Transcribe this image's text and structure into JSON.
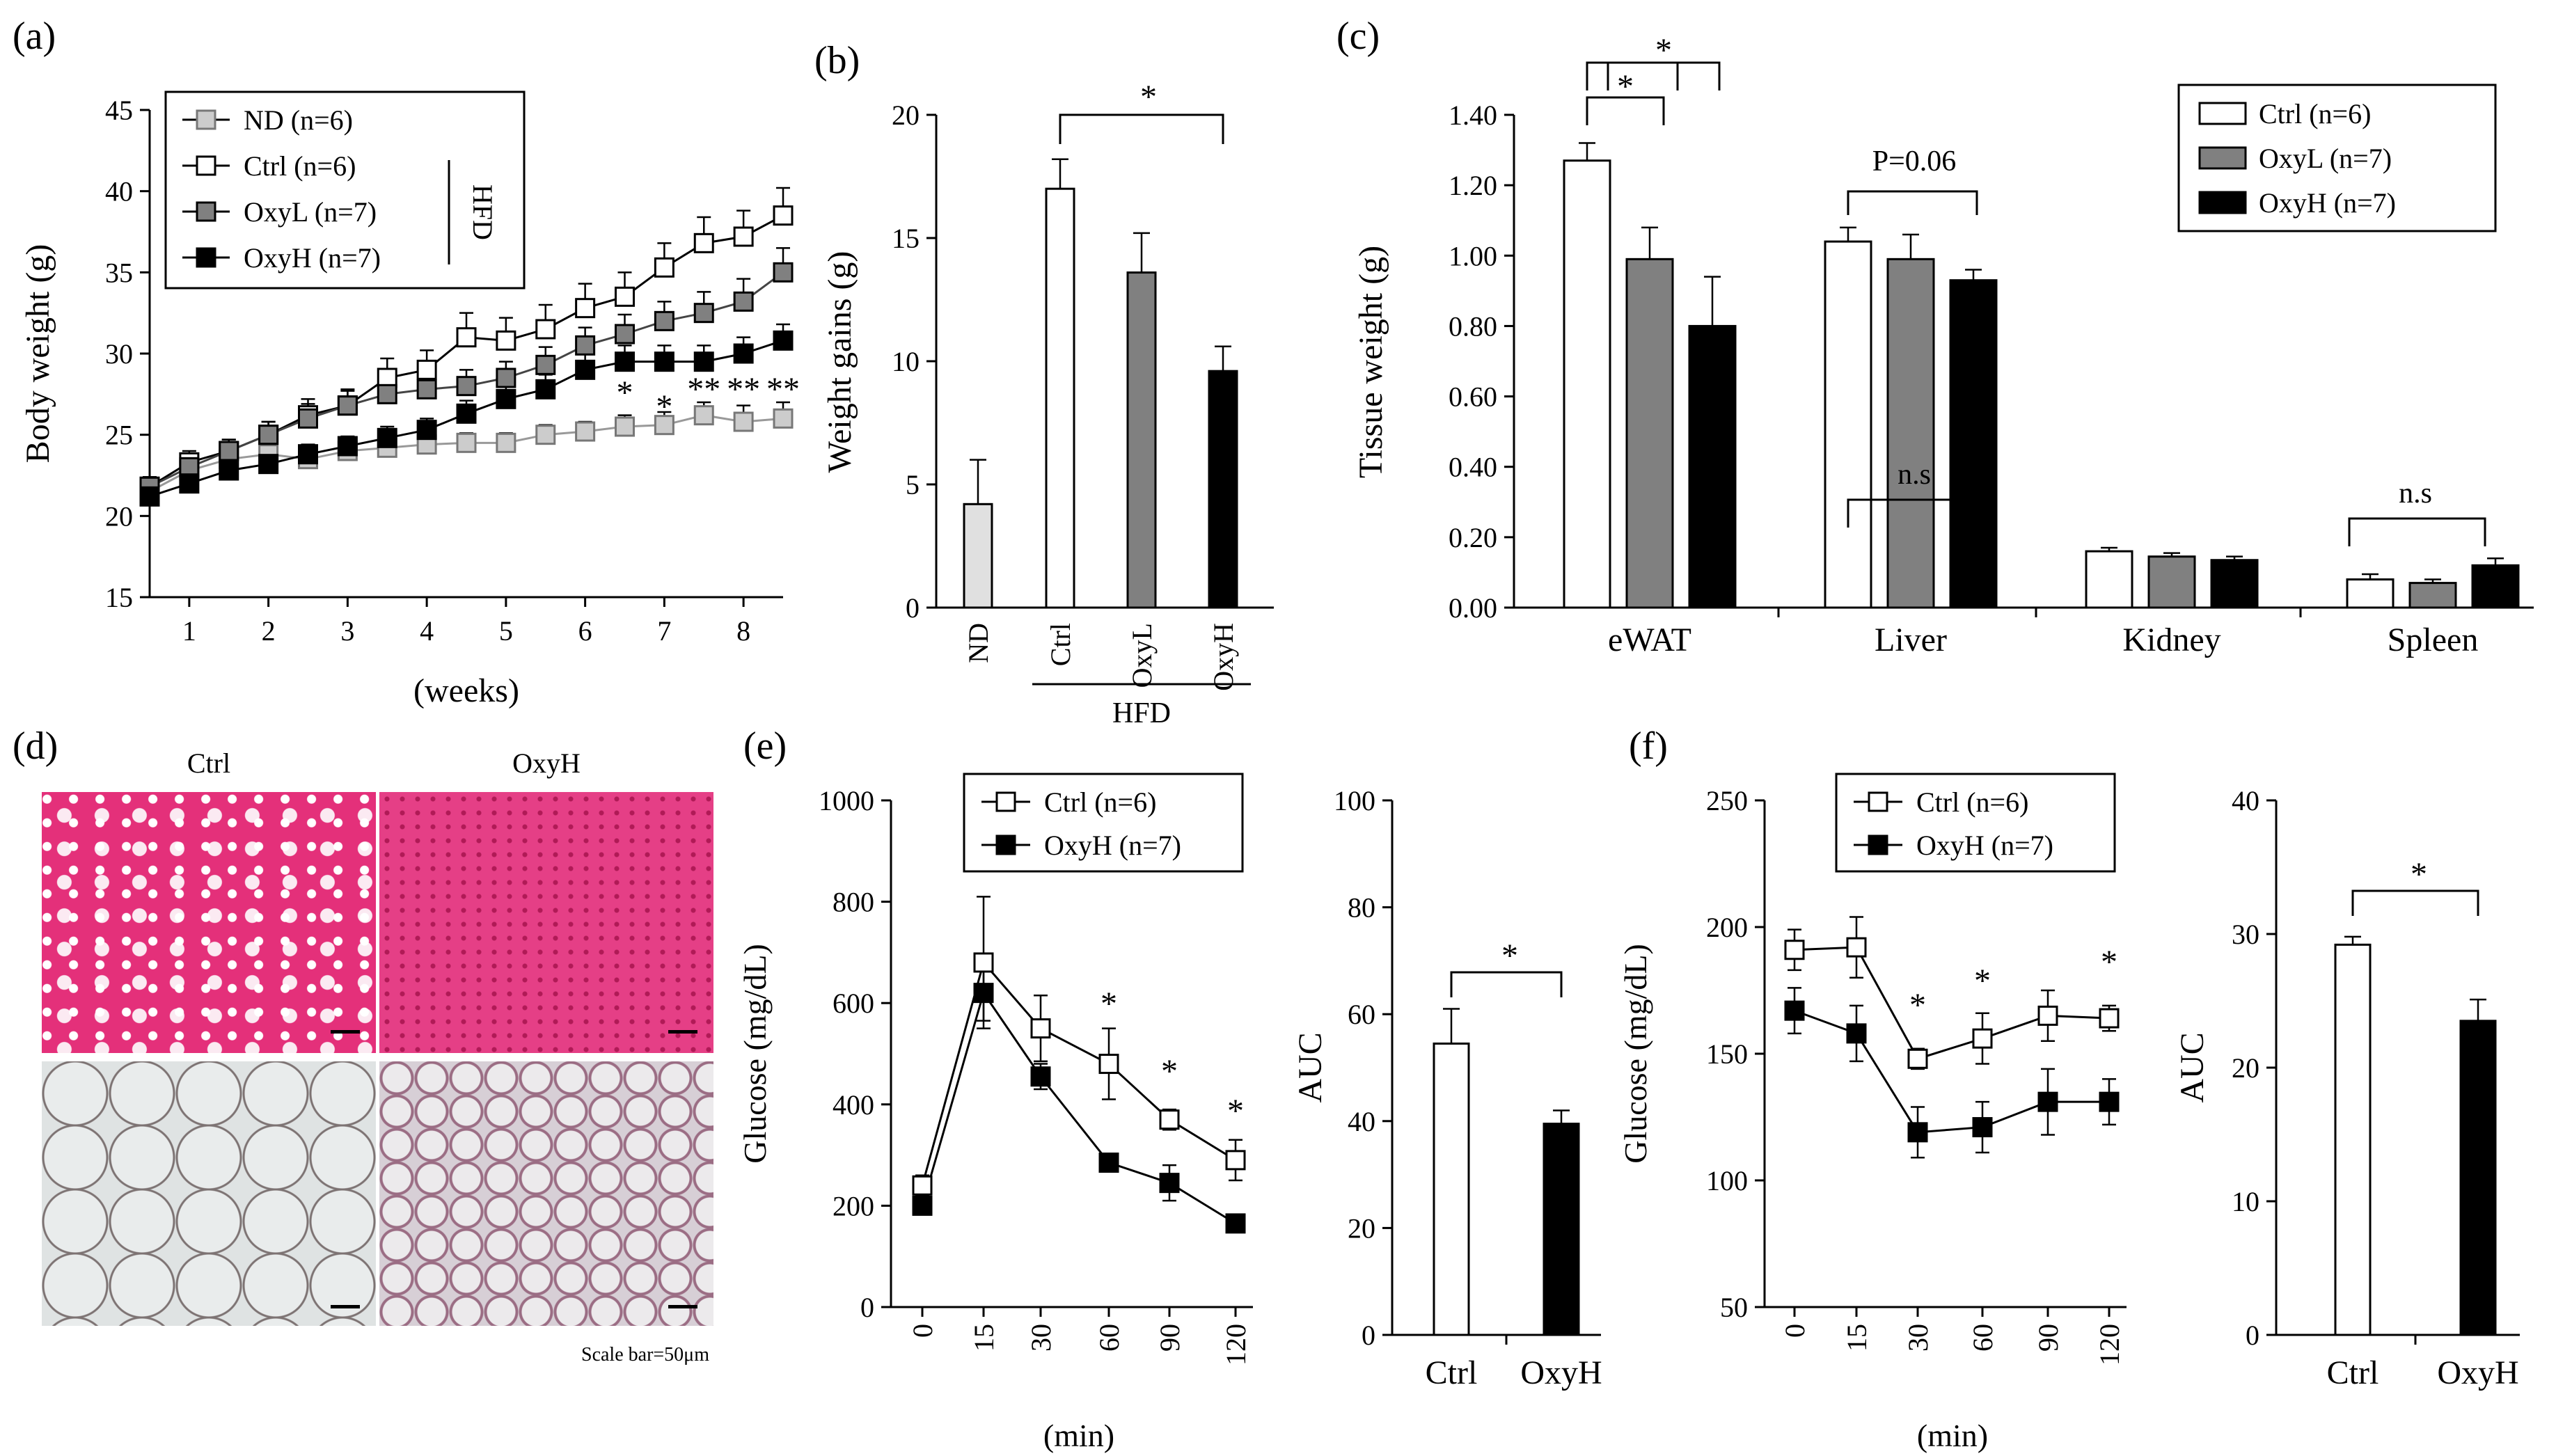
{
  "panel_a": {
    "label": "(a)",
    "chart_data": {
      "type": "line",
      "title": "",
      "xlabel": "(weeks)",
      "ylabel": "Body weight (g)",
      "ylim": [
        15,
        45
      ],
      "yticks": [
        "15",
        "20",
        "25",
        "30",
        "35",
        "40",
        "45"
      ],
      "xlim": [
        0.5,
        8.5
      ],
      "xticks": [
        "1",
        "2",
        "3",
        "4",
        "5",
        "6",
        "7",
        "8"
      ],
      "x": [
        0.5,
        1,
        1.5,
        2,
        2.5,
        3,
        3.5,
        4,
        4.5,
        5,
        5.5,
        6,
        6.5,
        7,
        7.5,
        8,
        8.5
      ],
      "series": [
        {
          "name": "ND (n=6)",
          "color": "#aaaaaa",
          "marker": "square-light",
          "values": [
            21.5,
            22.8,
            23.5,
            23.8,
            23.5,
            24.0,
            24.2,
            24.4,
            24.5,
            24.5,
            25.0,
            25.2,
            25.5,
            25.6,
            26.2,
            25.8,
            26.0
          ],
          "errors": [
            0.5,
            0.6,
            0.6,
            0.6,
            0.6,
            0.6,
            0.6,
            0.6,
            0.6,
            0.6,
            0.6,
            0.6,
            0.7,
            0.8,
            0.8,
            1.0,
            1.0
          ]
        },
        {
          "name": "Ctrl (n=6)",
          "color": "#ffffff",
          "marker": "square-open",
          "values": [
            21.8,
            23.3,
            24.0,
            25.0,
            26.2,
            26.8,
            28.5,
            29.0,
            31.0,
            30.8,
            31.5,
            32.8,
            33.5,
            35.3,
            36.8,
            37.2,
            38.5
          ],
          "errors": [
            0.6,
            0.7,
            0.7,
            0.8,
            1.0,
            1.0,
            1.2,
            1.2,
            1.5,
            1.4,
            1.5,
            1.5,
            1.5,
            1.5,
            1.6,
            1.6,
            1.7
          ]
        },
        {
          "name": "OxyL (n=7)",
          "color": "#777777",
          "marker": "square-gray",
          "values": [
            21.8,
            23.0,
            24.0,
            25.0,
            26.0,
            26.8,
            27.5,
            27.8,
            28.0,
            28.5,
            29.3,
            30.5,
            31.2,
            32.0,
            32.5,
            33.2,
            35.0
          ],
          "errors": [
            0.6,
            0.7,
            0.7,
            0.8,
            0.9,
            0.9,
            1.0,
            1.0,
            1.0,
            1.0,
            1.1,
            1.1,
            1.2,
            1.2,
            1.3,
            1.4,
            1.5
          ]
        },
        {
          "name": "OxyH (n=7)",
          "color": "#000000",
          "marker": "square-filled",
          "values": [
            21.2,
            22.0,
            22.8,
            23.2,
            23.8,
            24.3,
            24.8,
            25.3,
            26.3,
            27.2,
            27.8,
            29.0,
            29.5,
            29.5,
            29.5,
            30.0,
            30.8
          ],
          "errors": [
            0.5,
            0.5,
            0.5,
            0.6,
            0.6,
            0.6,
            0.7,
            0.7,
            0.8,
            0.9,
            0.9,
            1.0,
            1.0,
            1.0,
            1.0,
            1.0,
            1.0
          ]
        }
      ],
      "legend_group_label": "HFD",
      "annotations": [
        "*",
        "*",
        "**",
        "**",
        "**"
      ]
    }
  },
  "panel_b": {
    "label": "(b)",
    "chart_data": {
      "type": "bar",
      "title": "",
      "xlabel": "HFD",
      "ylabel": "Weight gains (g)",
      "ylim": [
        0,
        20
      ],
      "yticks": [
        "0",
        "5",
        "10",
        "15",
        "20"
      ],
      "categories": [
        "ND",
        "Ctrl",
        "OxyL",
        "OxyH"
      ],
      "values": [
        4.2,
        17.0,
        13.6,
        9.6
      ],
      "errors": [
        1.8,
        1.2,
        1.6,
        1.0
      ],
      "colors": [
        "#e0e0e0",
        "#ffffff",
        "#808080",
        "#000000"
      ],
      "significance": "*"
    }
  },
  "panel_c": {
    "label": "(c)",
    "chart_data": {
      "type": "bar",
      "title": "",
      "xlabel": "",
      "ylabel": "Tissue weight (g)",
      "ylim": [
        0,
        1.4
      ],
      "yticks": [
        "0.00",
        "0.20",
        "0.40",
        "0.60",
        "0.80",
        "1.00",
        "1.20",
        "1.40"
      ],
      "categories": [
        "eWAT",
        "Liver",
        "Kidney",
        "Spleen"
      ],
      "series": [
        {
          "name": "Ctrl (n=6)",
          "color": "#ffffff",
          "values": [
            1.27,
            1.04,
            0.16,
            0.08
          ],
          "errors": [
            0.05,
            0.04,
            0.01,
            0.015
          ]
        },
        {
          "name": "OxyL (n=7)",
          "color": "#808080",
          "values": [
            0.99,
            0.99,
            0.145,
            0.07
          ],
          "errors": [
            0.09,
            0.07,
            0.01,
            0.01
          ]
        },
        {
          "name": "OxyH (n=7)",
          "color": "#000000",
          "values": [
            0.8,
            0.93,
            0.135,
            0.12
          ],
          "errors": [
            0.14,
            0.03,
            0.01,
            0.02
          ]
        }
      ],
      "annotations": [
        "*",
        "*",
        "P=0.06",
        "n.s",
        "n.s"
      ]
    }
  },
  "panel_d": {
    "label": "(d)",
    "columns": [
      "Ctrl",
      "OxyH"
    ],
    "scale_note": "Scale bar=50μm"
  },
  "panel_e": {
    "label": "(e)",
    "chart_data": [
      {
        "type": "line",
        "title": "",
        "xlabel": "(min)",
        "ylabel": "Glucose (mg/dL)",
        "ylim": [
          0,
          1000
        ],
        "yticks": [
          "0",
          "200",
          "400",
          "600",
          "800",
          "1000"
        ],
        "x": [
          0,
          15,
          30,
          60,
          90,
          120
        ],
        "xticks": [
          "0",
          "15",
          "30",
          "60",
          "90",
          "120"
        ],
        "series": [
          {
            "name": "Ctrl (n=6)",
            "color": "#ffffff",
            "values": [
              240,
              680,
              550,
              480,
              370,
              290
            ],
            "errors": [
              20,
              130,
              65,
              70,
              20,
              40
            ]
          },
          {
            "name": "OxyH (n=7)",
            "color": "#000000",
            "values": [
              200,
              620,
              455,
              285,
              245,
              165
            ],
            "errors": [
              10,
              55,
              25,
              15,
              35,
              15
            ]
          }
        ],
        "annotations": [
          "*",
          "*",
          "*"
        ]
      },
      {
        "type": "bar",
        "title": "",
        "xlabel": "",
        "ylabel": "AUC",
        "ylim": [
          0,
          100
        ],
        "yticks": [
          "0",
          "20",
          "40",
          "60",
          "80",
          "100"
        ],
        "categories": [
          "Ctrl",
          "OxyH"
        ],
        "values": [
          54.5,
          39.5
        ],
        "errors": [
          6.5,
          2.5
        ],
        "colors": [
          "#ffffff",
          "#000000"
        ],
        "significance": "*"
      }
    ]
  },
  "panel_f": {
    "label": "(f)",
    "chart_data": [
      {
        "type": "line",
        "title": "",
        "xlabel": "(min)",
        "ylabel": "Glucose (mg/dL)",
        "ylim": [
          50,
          250
        ],
        "yticks": [
          "50",
          "100",
          "150",
          "200",
          "250"
        ],
        "x": [
          0,
          15,
          30,
          60,
          90,
          120
        ],
        "xticks": [
          "0",
          "15",
          "30",
          "60",
          "90",
          "120"
        ],
        "series": [
          {
            "name": "Ctrl (n=6)",
            "color": "#ffffff",
            "values": [
              191,
              192,
              148,
              156,
              165,
              164
            ],
            "errors": [
              8,
              12,
              4,
              10,
              10,
              5
            ]
          },
          {
            "name": "OxyH (n=7)",
            "color": "#000000",
            "values": [
              167,
              158,
              119,
              121,
              131,
              131
            ],
            "errors": [
              9,
              11,
              10,
              10,
              13,
              9
            ]
          }
        ],
        "annotations": [
          "*",
          "*",
          "*"
        ]
      },
      {
        "type": "bar",
        "title": "",
        "xlabel": "",
        "ylabel": "AUC",
        "ylim": [
          0,
          40
        ],
        "yticks": [
          "0",
          "10",
          "20",
          "30",
          "40"
        ],
        "categories": [
          "Ctrl",
          "OxyH"
        ],
        "values": [
          29.2,
          23.5
        ],
        "errors": [
          0.6,
          1.6
        ],
        "colors": [
          "#ffffff",
          "#000000"
        ],
        "significance": "*"
      }
    ]
  }
}
